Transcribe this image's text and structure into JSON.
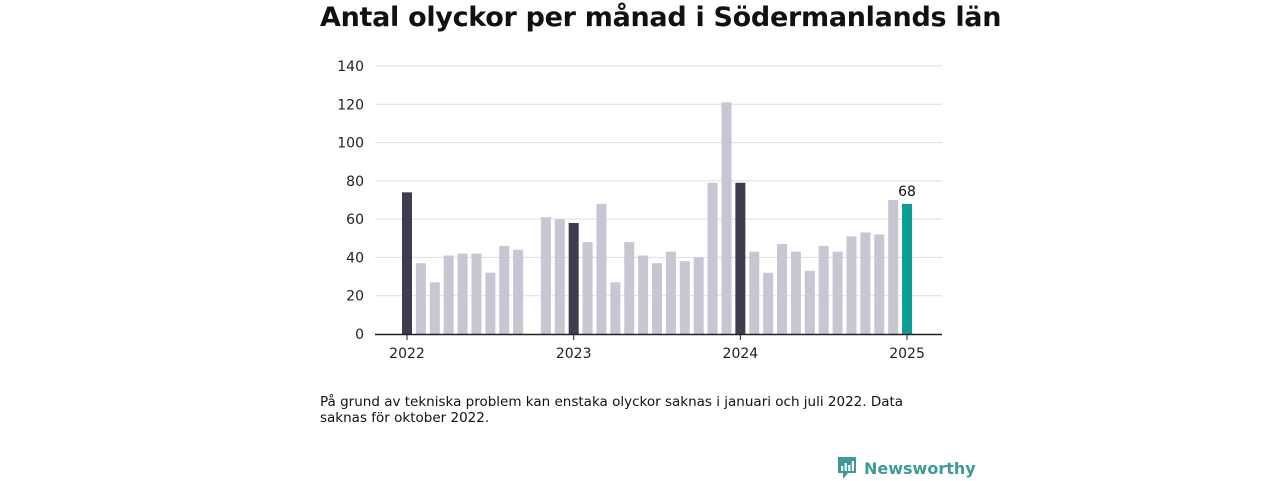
{
  "title": "Antal olyckor per månad i Södermanlands län",
  "note": "På grund av tekniska problem kan enstaka olyckor saknas i januari och juli 2022. Data saknas för oktober 2022.",
  "brand": {
    "name": "Newsworthy",
    "color": "#3e9a94"
  },
  "colors": {
    "regular": "#c7c6d3",
    "january": "#3e3c4e",
    "latest": "#0a9e96",
    "grid": "#dddddd",
    "axis": "#222222"
  },
  "chart_data": {
    "type": "bar",
    "title": "Antal olyckor per månad i Södermanlands län",
    "xlabel": "",
    "ylabel": "",
    "ylim": [
      0,
      140
    ],
    "yticks": [
      0,
      20,
      40,
      60,
      80,
      100,
      120,
      140
    ],
    "grid": true,
    "year_labels": [
      {
        "label": "2022",
        "index": 0
      },
      {
        "label": "2023",
        "index": 12
      },
      {
        "label": "2024",
        "index": 24
      },
      {
        "label": "2025",
        "index": 36
      }
    ],
    "categories": [
      "2022-01",
      "2022-02",
      "2022-03",
      "2022-04",
      "2022-05",
      "2022-06",
      "2022-07",
      "2022-08",
      "2022-09",
      "2022-10",
      "2022-11",
      "2022-12",
      "2023-01",
      "2023-02",
      "2023-03",
      "2023-04",
      "2023-05",
      "2023-06",
      "2023-07",
      "2023-08",
      "2023-09",
      "2023-10",
      "2023-11",
      "2023-12",
      "2024-01",
      "2024-02",
      "2024-03",
      "2024-04",
      "2024-05",
      "2024-06",
      "2024-07",
      "2024-08",
      "2024-09",
      "2024-10",
      "2024-11",
      "2024-12",
      "2025-01"
    ],
    "values": [
      74,
      37,
      27,
      41,
      42,
      42,
      32,
      46,
      44,
      null,
      61,
      60,
      58,
      48,
      68,
      27,
      48,
      41,
      37,
      43,
      38,
      40,
      79,
      121,
      79,
      43,
      32,
      47,
      43,
      33,
      46,
      43,
      51,
      53,
      52,
      70,
      68
    ],
    "highlight_last_label": "68"
  }
}
